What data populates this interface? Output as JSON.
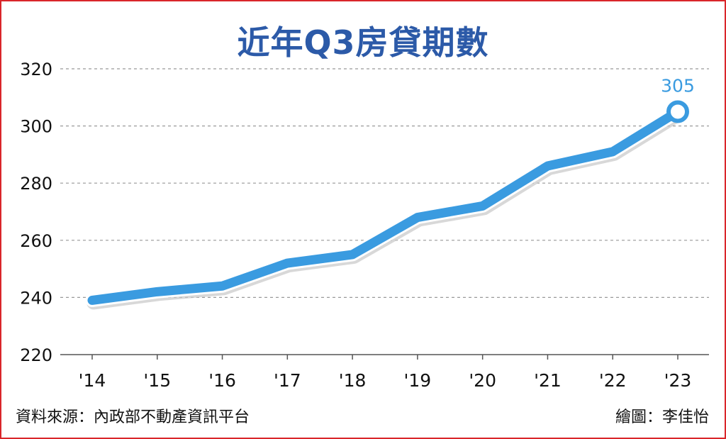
{
  "chart_data": {
    "type": "line",
    "title": "近年Q3房貸期數",
    "categories": [
      "'14",
      "'15",
      "'16",
      "'17",
      "'18",
      "'19",
      "'20",
      "'21",
      "'22",
      "'23"
    ],
    "series": [
      {
        "values": [
          239,
          242,
          244,
          252,
          255,
          268,
          272,
          286,
          291,
          305
        ]
      }
    ],
    "ylim": [
      220,
      320
    ],
    "yticks": [
      220,
      240,
      260,
      280,
      300,
      320
    ],
    "grid": true,
    "annotation": {
      "index": 9,
      "label": "305"
    }
  },
  "colors": {
    "line": "#3a9be0",
    "title": "#2c5aa8",
    "annotation": "#3a9be0",
    "grid": "#999999",
    "frame": "#d9262a"
  },
  "footer": {
    "source": "資料來源：內政部不動產資訊平台",
    "credit": "繪圖：李佳怡"
  }
}
